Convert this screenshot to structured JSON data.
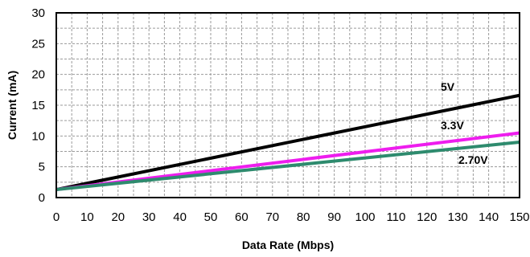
{
  "chart_data": {
    "type": "line",
    "title": "",
    "xlabel": "Data Rate (Mbps)",
    "ylabel": "Current (mA)",
    "xlim": [
      0,
      150
    ],
    "ylim": [
      0,
      30
    ],
    "xticks": [
      0,
      10,
      20,
      30,
      40,
      50,
      60,
      70,
      80,
      90,
      100,
      110,
      120,
      130,
      140,
      150
    ],
    "yticks": [
      0,
      5,
      10,
      15,
      20,
      25,
      30
    ],
    "grid": "dashed",
    "series": [
      {
        "name": "5V",
        "color": "#000000",
        "x": [
          0,
          150
        ],
        "y": [
          1.3,
          16.6
        ]
      },
      {
        "name": "3.3V",
        "color": "#ee1dee",
        "x": [
          0,
          150
        ],
        "y": [
          1.3,
          10.5
        ]
      },
      {
        "name": "2.70V",
        "color": "#2e8b6e",
        "x": [
          0,
          150
        ],
        "y": [
          1.3,
          9.0
        ]
      }
    ]
  }
}
